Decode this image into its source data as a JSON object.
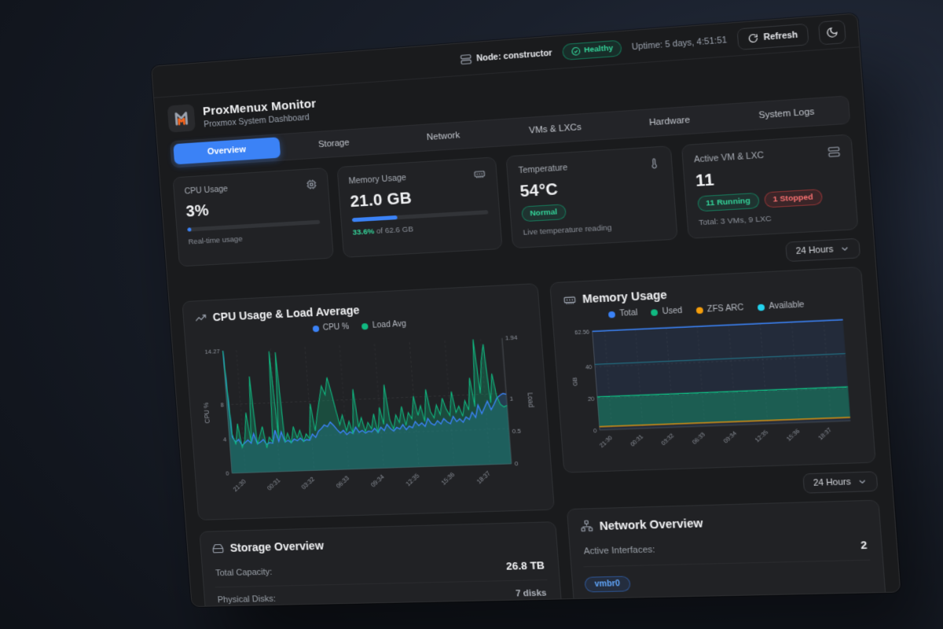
{
  "topbar": {
    "node": "Node: constructor",
    "health": "Healthy",
    "uptime": "Uptime: 5 days, 4:51:51",
    "refresh": "Refresh"
  },
  "header": {
    "title": "ProxMenux Monitor",
    "subtitle": "Proxmox System Dashboard"
  },
  "tabs": [
    {
      "label": "Overview",
      "active": true
    },
    {
      "label": "Storage",
      "active": false
    },
    {
      "label": "Network",
      "active": false
    },
    {
      "label": "VMs & LXCs",
      "active": false
    },
    {
      "label": "Hardware",
      "active": false
    },
    {
      "label": "System Logs",
      "active": false
    }
  ],
  "stats": {
    "cpu": {
      "label": "CPU Usage",
      "value": "3%",
      "percent": 3,
      "sub": "Real-time usage"
    },
    "memory": {
      "label": "Memory Usage",
      "value": "21.0 GB",
      "percent": 33.6,
      "sub_highlight": "33.6%",
      "sub_rest": " of 62.6 GB"
    },
    "temperature": {
      "label": "Temperature",
      "value": "54°C",
      "badge": "Normal",
      "sub": "Live temperature reading"
    },
    "vms": {
      "label": "Active VM & LXC",
      "value": "11",
      "running_badge": "11 Running",
      "stopped_badge": "1 Stopped",
      "sub": "Total: 3 VMs, 9 LXC"
    }
  },
  "range": {
    "value": "24 Hours"
  },
  "storage": {
    "title": "Storage Overview",
    "rows": [
      {
        "label": "Total Capacity:",
        "value": "26.8 TB"
      },
      {
        "label": "Physical Disks:",
        "value": "7 disks"
      }
    ]
  },
  "network": {
    "title": "Network Overview",
    "rows": [
      {
        "label": "Active Interfaces:",
        "value": "2"
      }
    ],
    "badges": [
      "vmbr0"
    ]
  },
  "colors": {
    "accent_blue": "#3b82f6",
    "green": "#10b981",
    "orange": "#f59e0b",
    "cyan": "#22d3ee",
    "red": "#ef4444"
  },
  "chart_data": [
    {
      "type": "area",
      "title": "CPU Usage & Load Average",
      "x_ticks": [
        "21:30",
        "00:31",
        "03:32",
        "06:33",
        "09:34",
        "12:35",
        "15:36",
        "18:37"
      ],
      "y_left": {
        "label": "CPU %",
        "ticks": [
          0,
          4,
          8
        ],
        "max": 14.27
      },
      "y_right": {
        "label": "Load",
        "ticks": [
          0,
          0.5,
          1
        ],
        "max": 1.94
      },
      "series": [
        {
          "name": "CPU %",
          "color": "#3b82f6",
          "axis": "left",
          "values": [
            14.27,
            4.2,
            3.6,
            3.9,
            3.2,
            3.5,
            3.8,
            3.4,
            4.5,
            3.3,
            3.5,
            3.8,
            3.2,
            3.4,
            3.3,
            4.8,
            3.5,
            4.6,
            3.4,
            3.6,
            3.3,
            3.7,
            3.5,
            3.8,
            3.4,
            3.6,
            3.5,
            4.2,
            3.8,
            4.5,
            4.8,
            5.2,
            5.0,
            5.5,
            5.1,
            4.6,
            4.2,
            4.5,
            4.0,
            4.3,
            4.1,
            4.8,
            4.2,
            4.4,
            4.1,
            4.3,
            4.2,
            4.6,
            4.1,
            4.7,
            4.3,
            5.0,
            4.5,
            4.2,
            4.6,
            4.4,
            4.9,
            4.3,
            4.7,
            4.5,
            5.2,
            4.7,
            5.0,
            4.6,
            5.5,
            4.9,
            4.7,
            5.2,
            4.8,
            5.4,
            5.0,
            4.8,
            5.6,
            5.0,
            5.3,
            4.9,
            5.5,
            5.2,
            6.0,
            5.4,
            6.8,
            5.8,
            6.5,
            7.2,
            6.2,
            6.8,
            7.5,
            7.8,
            8.0,
            7.9
          ]
        },
        {
          "name": "Load Avg",
          "color": "#10b981",
          "axis": "right",
          "values": [
            1.94,
            0.62,
            0.45,
            0.78,
            0.4,
            0.52,
            0.95,
            0.48,
            1.52,
            0.44,
            0.58,
            0.72,
            0.38,
            0.55,
            0.47,
            1.9,
            0.52,
            1.88,
            0.46,
            0.6,
            0.44,
            0.7,
            0.52,
            0.64,
            0.46,
            0.58,
            0.5,
            1.05,
            0.62,
            0.88,
            1.1,
            1.32,
            1.18,
            1.45,
            1.22,
            0.95,
            0.7,
            0.85,
            0.6,
            0.75,
            0.55,
            1.25,
            0.65,
            0.8,
            0.58,
            0.72,
            0.62,
            0.85,
            0.55,
            0.95,
            0.68,
            1.3,
            0.75,
            0.6,
            0.82,
            0.7,
            0.95,
            0.65,
            0.85,
            0.75,
            1.1,
            0.8,
            0.95,
            0.7,
            1.2,
            0.85,
            0.75,
            0.95,
            0.8,
            1.05,
            0.88,
            0.78,
            1.15,
            0.82,
            0.92,
            0.76,
            1.0,
            0.85,
            1.35,
            0.9,
            1.94,
            1.1,
            1.6,
            1.86,
            0.95,
            1.4,
            1.05,
            0.92,
            0.88,
            0.9
          ]
        }
      ]
    },
    {
      "type": "area",
      "title": "Memory Usage",
      "x_ticks": [
        "21:30",
        "00:31",
        "03:32",
        "06:33",
        "09:34",
        "12:35",
        "15:36",
        "18:37"
      ],
      "y": {
        "label": "GB",
        "ticks": [
          0,
          20,
          40
        ],
        "max": 62.56
      },
      "series": [
        {
          "name": "Total",
          "color": "#3b82f6",
          "value": 62.56
        },
        {
          "name": "Used",
          "color": "#10b981",
          "value": 21.0
        },
        {
          "name": "ZFS ARC",
          "color": "#f59e0b",
          "value": 2.1
        },
        {
          "name": "Available",
          "color": "#22d3ee",
          "value": 41.56
        }
      ]
    }
  ]
}
